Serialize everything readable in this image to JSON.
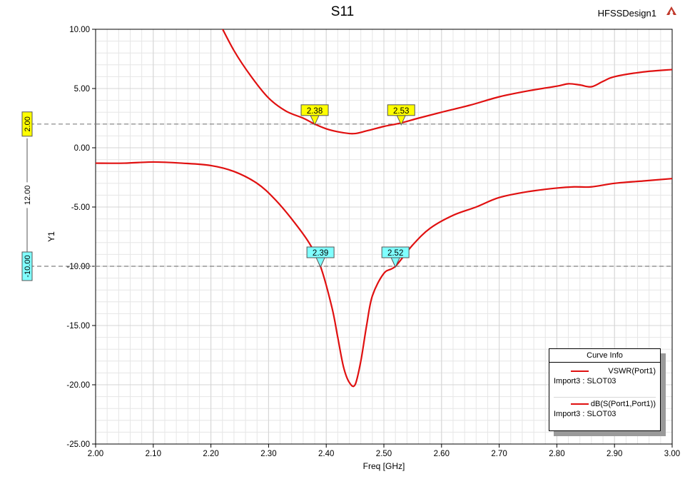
{
  "header": {
    "title": "S11",
    "design_name": "HFSSDesign1",
    "design_icon": "ansys-logo-icon"
  },
  "colors": {
    "curve": "#e01010",
    "marker_yellow": "#ffff00",
    "marker_cyan": "#80ffff",
    "grid": "#d4d4d4",
    "ref_line": "#808080"
  },
  "legend": {
    "title": "Curve Info",
    "items": [
      {
        "name": "VSWR(Port1)",
        "source": "Import3 : SLOT03"
      },
      {
        "name": "dB(S(Port1,Port1))",
        "source": "Import3 : SLOT03"
      }
    ]
  },
  "chart_data": {
    "type": "line",
    "title": "S11",
    "xlabel": "Freq [GHz]",
    "ylabel": "Y1",
    "xlim": [
      2.0,
      3.0
    ],
    "ylim": [
      -25.0,
      10.0
    ],
    "xticks": [
      "2.00",
      "2.10",
      "2.20",
      "2.30",
      "2.40",
      "2.50",
      "2.60",
      "2.70",
      "2.80",
      "2.90",
      "3.00"
    ],
    "yticks": [
      "-25.00",
      "-20.00",
      "-15.00",
      "-10.00",
      "-5.00",
      "0.00",
      "5.00",
      "10.00"
    ],
    "grid": true,
    "legend_position": "bottom-right",
    "series": [
      {
        "name": "VSWR(Port1)",
        "x": [
          2.21,
          2.24,
          2.27,
          2.3,
          2.33,
          2.36,
          2.38,
          2.4,
          2.42,
          2.44,
          2.45,
          2.46,
          2.48,
          2.5,
          2.53,
          2.56,
          2.6,
          2.65,
          2.7,
          2.75,
          2.8,
          2.82,
          2.84,
          2.86,
          2.88,
          2.9,
          2.95,
          3.0
        ],
        "y": [
          11.0,
          8.2,
          6.0,
          4.2,
          3.1,
          2.5,
          2.0,
          1.6,
          1.35,
          1.2,
          1.2,
          1.3,
          1.55,
          1.8,
          2.1,
          2.5,
          3.0,
          3.6,
          4.3,
          4.8,
          5.2,
          5.4,
          5.3,
          5.15,
          5.6,
          6.0,
          6.4,
          6.6
        ]
      },
      {
        "name": "dB(S(Port1,Port1))",
        "x": [
          2.0,
          2.05,
          2.1,
          2.15,
          2.2,
          2.24,
          2.28,
          2.31,
          2.34,
          2.37,
          2.39,
          2.41,
          2.42,
          2.43,
          2.44,
          2.45,
          2.46,
          2.47,
          2.48,
          2.5,
          2.52,
          2.55,
          2.58,
          2.62,
          2.66,
          2.7,
          2.75,
          2.8,
          2.83,
          2.86,
          2.9,
          2.95,
          3.0
        ],
        "y": [
          -1.3,
          -1.3,
          -1.2,
          -1.3,
          -1.5,
          -2.0,
          -3.0,
          -4.3,
          -6.0,
          -8.0,
          -10.0,
          -13.5,
          -16.0,
          -18.5,
          -19.8,
          -20.0,
          -18.0,
          -15.0,
          -12.5,
          -10.6,
          -10.0,
          -8.2,
          -6.8,
          -5.7,
          -5.0,
          -4.2,
          -3.7,
          -3.4,
          -3.3,
          -3.3,
          -3.0,
          -2.8,
          -2.6
        ]
      }
    ],
    "reference_lines": [
      {
        "axis_value": "2.00",
        "y": 2.0,
        "marker": "yellow"
      },
      {
        "axis_value": "-10.00",
        "y": -10.0,
        "marker": "cyan"
      }
    ],
    "delta_label": "12.00",
    "markers": [
      {
        "label": "2.38",
        "x": 2.38,
        "y": 2.0,
        "color": "yellow"
      },
      {
        "label": "2.53",
        "x": 2.53,
        "y": 2.0,
        "color": "yellow"
      },
      {
        "label": "2.39",
        "x": 2.39,
        "y": -10.0,
        "color": "cyan"
      },
      {
        "label": "2.52",
        "x": 2.52,
        "y": -10.0,
        "color": "cyan"
      }
    ]
  }
}
